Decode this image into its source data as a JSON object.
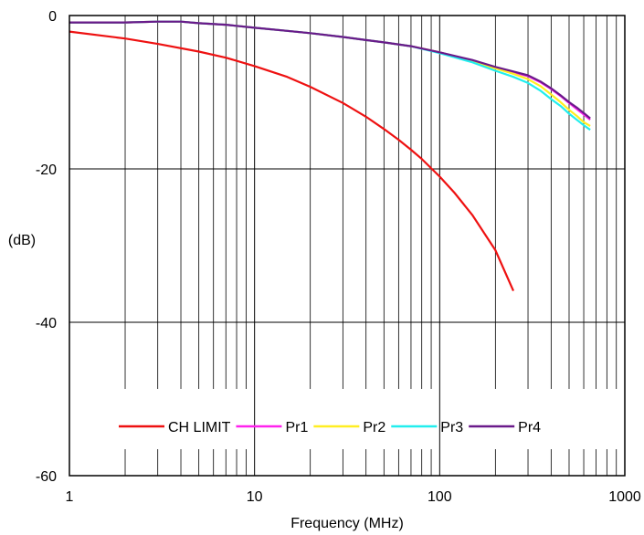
{
  "chart_data": {
    "type": "line",
    "title": "",
    "xlabel": "Frequency (MHz)",
    "ylabel": "(dB)",
    "x_scale": "log",
    "xlim": [
      1,
      1000
    ],
    "ylim": [
      -60,
      0
    ],
    "x_ticks": [
      {
        "value": 1,
        "label": "1"
      },
      {
        "value": 10,
        "label": "10"
      },
      {
        "value": 100,
        "label": "100"
      },
      {
        "value": 1000,
        "label": "1000"
      }
    ],
    "y_ticks": [
      {
        "value": 0,
        "label": "0"
      },
      {
        "value": -20,
        "label": "-20"
      },
      {
        "value": -40,
        "label": "-40"
      },
      {
        "value": -60,
        "label": "-60"
      }
    ],
    "grid": true,
    "legend_position": "bottom",
    "series": [
      {
        "name": "CH LIMIT",
        "color": "#ee1111",
        "x": [
          1,
          2,
          3,
          5,
          7,
          10,
          15,
          20,
          30,
          40,
          50,
          60,
          70,
          80,
          100,
          120,
          150,
          200,
          250
        ],
        "y": [
          -2.1,
          -3.0,
          -3.7,
          -4.7,
          -5.5,
          -6.6,
          -8.0,
          -9.3,
          -11.4,
          -13.2,
          -14.8,
          -16.2,
          -17.5,
          -18.7,
          -21.0,
          -23.1,
          -26.0,
          -30.6,
          -35.9
        ]
      },
      {
        "name": "Pr1",
        "color": "#ff22ee",
        "x": [
          1,
          2,
          3,
          4,
          5,
          7,
          10,
          15,
          20,
          30,
          40,
          50,
          70,
          100,
          150,
          200,
          250,
          300,
          350,
          400,
          450,
          500,
          550,
          600,
          650
        ],
        "y": [
          -0.9,
          -0.9,
          -0.8,
          -0.8,
          -1.0,
          -1.2,
          -1.6,
          -2.0,
          -2.3,
          -2.8,
          -3.2,
          -3.5,
          -4.0,
          -4.8,
          -5.9,
          -6.8,
          -7.4,
          -7.9,
          -8.7,
          -9.6,
          -10.5,
          -11.4,
          -12.2,
          -12.9,
          -13.6
        ]
      },
      {
        "name": "Pr2",
        "color": "#ffee22",
        "x": [
          1,
          2,
          3,
          4,
          5,
          7,
          10,
          15,
          20,
          30,
          40,
          50,
          70,
          100,
          150,
          200,
          250,
          300,
          350,
          400,
          450,
          500,
          550,
          600,
          650
        ],
        "y": [
          -0.9,
          -0.9,
          -0.8,
          -0.8,
          -1.0,
          -1.2,
          -1.6,
          -2.0,
          -2.3,
          -2.8,
          -3.2,
          -3.5,
          -4.0,
          -4.8,
          -6.0,
          -6.9,
          -7.6,
          -8.3,
          -9.2,
          -10.3,
          -11.3,
          -12.3,
          -13.1,
          -13.9,
          -14.4
        ]
      },
      {
        "name": "Pr3",
        "color": "#22eeee",
        "x": [
          1,
          2,
          3,
          4,
          5,
          7,
          10,
          15,
          20,
          30,
          40,
          50,
          70,
          100,
          150,
          200,
          250,
          300,
          350,
          400,
          450,
          500,
          550,
          600,
          650
        ],
        "y": [
          -0.9,
          -0.9,
          -0.8,
          -0.8,
          -1.0,
          -1.2,
          -1.6,
          -2.0,
          -2.3,
          -2.8,
          -3.2,
          -3.5,
          -4.0,
          -4.9,
          -6.1,
          -7.2,
          -8.0,
          -8.8,
          -9.8,
          -10.9,
          -11.8,
          -12.8,
          -13.6,
          -14.3,
          -14.9
        ]
      },
      {
        "name": "Pr4",
        "color": "#6a1a8a",
        "x": [
          1,
          2,
          3,
          4,
          5,
          7,
          10,
          15,
          20,
          30,
          40,
          50,
          70,
          100,
          150,
          200,
          250,
          300,
          350,
          400,
          450,
          500,
          550,
          600,
          650
        ],
        "y": [
          -0.9,
          -0.9,
          -0.8,
          -0.8,
          -1.0,
          -1.2,
          -1.6,
          -2.0,
          -2.3,
          -2.8,
          -3.2,
          -3.5,
          -4.0,
          -4.8,
          -5.8,
          -6.7,
          -7.3,
          -7.8,
          -8.6,
          -9.5,
          -10.4,
          -11.3,
          -12.0,
          -12.7,
          -13.4
        ]
      }
    ]
  }
}
